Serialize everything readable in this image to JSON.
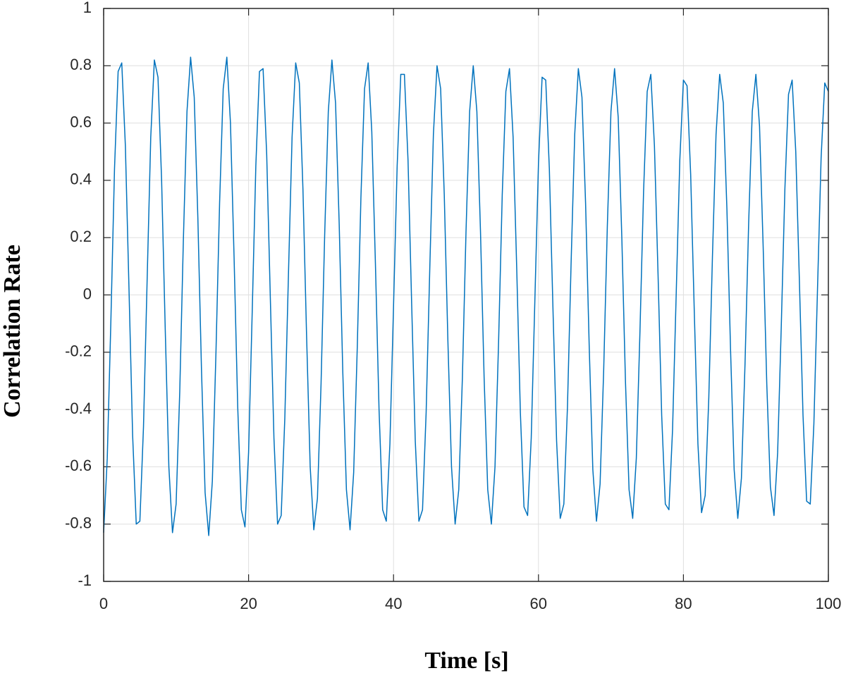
{
  "chart_data": {
    "type": "line",
    "xlabel": "Time [s]",
    "ylabel": "Correlation Rate",
    "color": "#0072bd",
    "grid": true,
    "xlim": [
      0,
      100
    ],
    "xticks": [
      0,
      20,
      40,
      60,
      80,
      100
    ],
    "ylim": [
      -1,
      1
    ],
    "yticks": [
      -1,
      -0.8,
      -0.6,
      -0.4,
      -0.2,
      0,
      0.2,
      0.4,
      0.6,
      0.8,
      1
    ],
    "x": [
      0,
      0.5,
      1,
      1.5,
      2,
      2.5,
      3,
      3.5,
      4,
      4.5,
      5,
      5.5,
      6,
      6.5,
      7,
      7.5,
      8,
      8.5,
      9,
      9.5,
      10,
      10.5,
      11,
      11.5,
      12,
      12.5,
      13,
      13.5,
      14,
      14.5,
      15,
      15.5,
      16,
      16.5,
      17,
      17.5,
      18,
      18.5,
      19,
      19.5,
      20,
      20.5,
      21,
      21.5,
      22,
      22.5,
      23,
      23.5,
      24,
      24.5,
      25,
      25.5,
      26,
      26.5,
      27,
      27.5,
      28,
      28.5,
      29,
      29.5,
      30,
      30.5,
      31,
      31.5,
      32,
      32.5,
      33,
      33.5,
      34,
      34.5,
      35,
      35.5,
      36,
      36.5,
      37,
      37.5,
      38,
      38.5,
      39,
      39.5,
      40,
      40.5,
      41,
      41.5,
      42,
      42.5,
      43,
      43.5,
      44,
      44.5,
      45,
      45.5,
      46,
      46.5,
      47,
      47.5,
      48,
      48.5,
      49,
      49.5,
      50,
      50.5,
      51,
      51.5,
      52,
      52.5,
      53,
      53.5,
      54,
      54.5,
      55,
      55.5,
      56,
      56.5,
      57,
      57.5,
      58,
      58.5,
      59,
      59.5,
      60,
      60.5,
      61,
      61.5,
      62,
      62.5,
      63,
      63.5,
      64,
      64.5,
      65,
      65.5,
      66,
      66.5,
      67,
      67.5,
      68,
      68.5,
      69,
      69.5,
      70,
      70.5,
      71,
      71.5,
      72,
      72.5,
      73,
      73.5,
      74,
      74.5,
      75,
      75.5,
      76,
      76.5,
      77,
      77.5,
      78,
      78.5,
      79,
      79.5,
      80,
      80.5,
      81,
      81.5,
      82,
      82.5,
      83,
      83.5,
      84,
      84.5,
      85,
      85.5,
      86,
      86.5,
      87,
      87.5,
      88,
      88.5,
      89,
      89.5,
      90,
      90.5,
      91,
      91.5,
      92,
      92.5,
      93,
      93.5,
      94,
      94.5,
      95,
      95.5,
      96,
      96.5,
      97,
      97.5,
      98,
      98.5,
      99,
      99.5,
      100
    ],
    "values": [
      -0.83,
      -0.57,
      -0.09,
      0.44,
      0.78,
      0.81,
      0.52,
      0.02,
      -0.49,
      -0.8,
      -0.79,
      -0.46,
      0.05,
      0.55,
      0.82,
      0.76,
      0.4,
      -0.12,
      -0.6,
      -0.83,
      -0.73,
      -0.34,
      0.19,
      0.64,
      0.83,
      0.69,
      0.27,
      -0.26,
      -0.69,
      -0.84,
      -0.65,
      -0.2,
      0.32,
      0.72,
      0.83,
      0.6,
      0.13,
      -0.39,
      -0.75,
      -0.81,
      -0.55,
      -0.06,
      0.45,
      0.78,
      0.79,
      0.49,
      -0.01,
      -0.5,
      -0.8,
      -0.77,
      -0.43,
      0.07,
      0.55,
      0.81,
      0.74,
      0.37,
      -0.14,
      -0.6,
      -0.82,
      -0.71,
      -0.31,
      0.21,
      0.64,
      0.82,
      0.67,
      0.25,
      -0.27,
      -0.68,
      -0.82,
      -0.62,
      -0.18,
      0.34,
      0.72,
      0.81,
      0.57,
      0.11,
      -0.4,
      -0.75,
      -0.79,
      -0.52,
      -0.04,
      0.45,
      0.77,
      0.77,
      0.47,
      -0.03,
      -0.51,
      -0.79,
      -0.75,
      -0.41,
      0.09,
      0.56,
      0.8,
      0.72,
      0.35,
      -0.16,
      -0.6,
      -0.8,
      -0.68,
      -0.29,
      0.22,
      0.64,
      0.8,
      0.64,
      0.22,
      -0.29,
      -0.68,
      -0.8,
      -0.6,
      -0.16,
      0.35,
      0.71,
      0.79,
      0.55,
      0.09,
      -0.41,
      -0.74,
      -0.77,
      -0.5,
      -0.02,
      0.46,
      0.76,
      0.75,
      0.44,
      -0.05,
      -0.51,
      -0.78,
      -0.73,
      -0.39,
      0.11,
      0.56,
      0.79,
      0.69,
      0.32,
      -0.18,
      -0.61,
      -0.79,
      -0.66,
      -0.26,
      0.24,
      0.64,
      0.79,
      0.62,
      0.2,
      -0.3,
      -0.68,
      -0.78,
      -0.57,
      -0.13,
      0.36,
      0.71,
      0.77,
      0.52,
      0.07,
      -0.42,
      -0.73,
      -0.75,
      -0.47,
      0,
      0.47,
      0.75,
      0.73,
      0.42,
      -0.06,
      -0.52,
      -0.76,
      -0.7,
      -0.36,
      0.13,
      0.56,
      0.77,
      0.67,
      0.3,
      -0.19,
      -0.61,
      -0.78,
      -0.64,
      -0.24,
      0.25,
      0.64,
      0.77,
      0.59,
      0.17,
      -0.31,
      -0.67,
      -0.77,
      -0.55,
      -0.11,
      0.37,
      0.7,
      0.75,
      0.5,
      0.05,
      -0.42,
      -0.72,
      -0.73,
      -0.45,
      0.02,
      0.48,
      0.74,
      0.71
    ]
  }
}
